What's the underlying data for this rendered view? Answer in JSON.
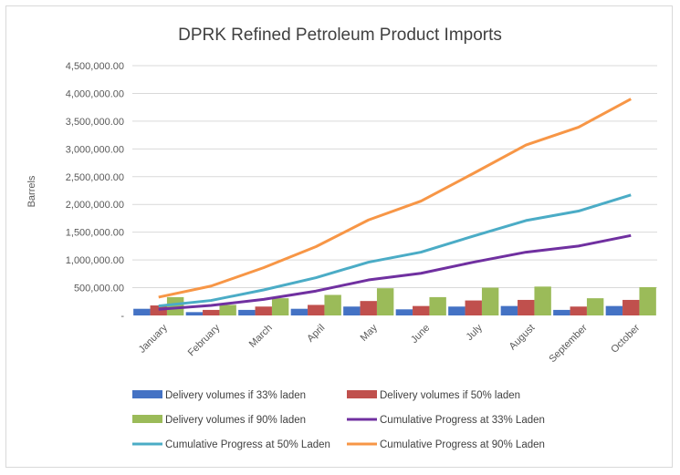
{
  "chart_data": {
    "type": "bar",
    "title": "DPRK Refined Petroleum Product Imports",
    "ylabel": "Barrels",
    "xlabel": "",
    "ylim": [
      0,
      4500000
    ],
    "yticks": [
      0,
      500000,
      1000000,
      1500000,
      2000000,
      2500000,
      3000000,
      3500000,
      4000000,
      4500000
    ],
    "ytick_labels": [
      "-",
      "500,000.00",
      "1,000,000.00",
      "1,500,000.00",
      "2,000,000.00",
      "2,500,000.00",
      "3,000,000.00",
      "3,500,000.00",
      "4,000,000.00",
      "4,500,000.00"
    ],
    "grid": true,
    "legend": "bottom",
    "categories": [
      "January",
      "February",
      "March",
      "April",
      "May",
      "June",
      "July",
      "August",
      "September",
      "October"
    ],
    "series": [
      {
        "name": "Delivery volumes if 33% laden",
        "kind": "bar",
        "color": "#4472c4",
        "values": [
          120000,
          60000,
          100000,
          120000,
          160000,
          110000,
          160000,
          170000,
          100000,
          170000
        ]
      },
      {
        "name": "Delivery volumes if 50% laden",
        "kind": "bar",
        "color": "#c0504d",
        "values": [
          180000,
          100000,
          160000,
          190000,
          260000,
          170000,
          270000,
          280000,
          160000,
          280000
        ]
      },
      {
        "name": "Delivery volumes if 90% laden",
        "kind": "bar",
        "color": "#9bbb59",
        "values": [
          330000,
          190000,
          310000,
          370000,
          490000,
          330000,
          500000,
          520000,
          310000,
          510000
        ]
      },
      {
        "name": "Cumulative Progress at 33% Laden",
        "kind": "line",
        "color": "#7030a0",
        "values": [
          110000,
          180000,
          290000,
          440000,
          640000,
          760000,
          960000,
          1140000,
          1250000,
          1440000
        ]
      },
      {
        "name": "Cumulative Progress at 50% Laden",
        "kind": "line",
        "color": "#4bacc6",
        "values": [
          170000,
          270000,
          460000,
          680000,
          960000,
          1140000,
          1430000,
          1710000,
          1880000,
          2170000
        ]
      },
      {
        "name": "Cumulative Progress at 90% Laden",
        "kind": "line",
        "color": "#f79646",
        "values": [
          330000,
          530000,
          860000,
          1240000,
          1720000,
          2060000,
          2560000,
          3070000,
          3390000,
          3900000
        ]
      }
    ]
  }
}
